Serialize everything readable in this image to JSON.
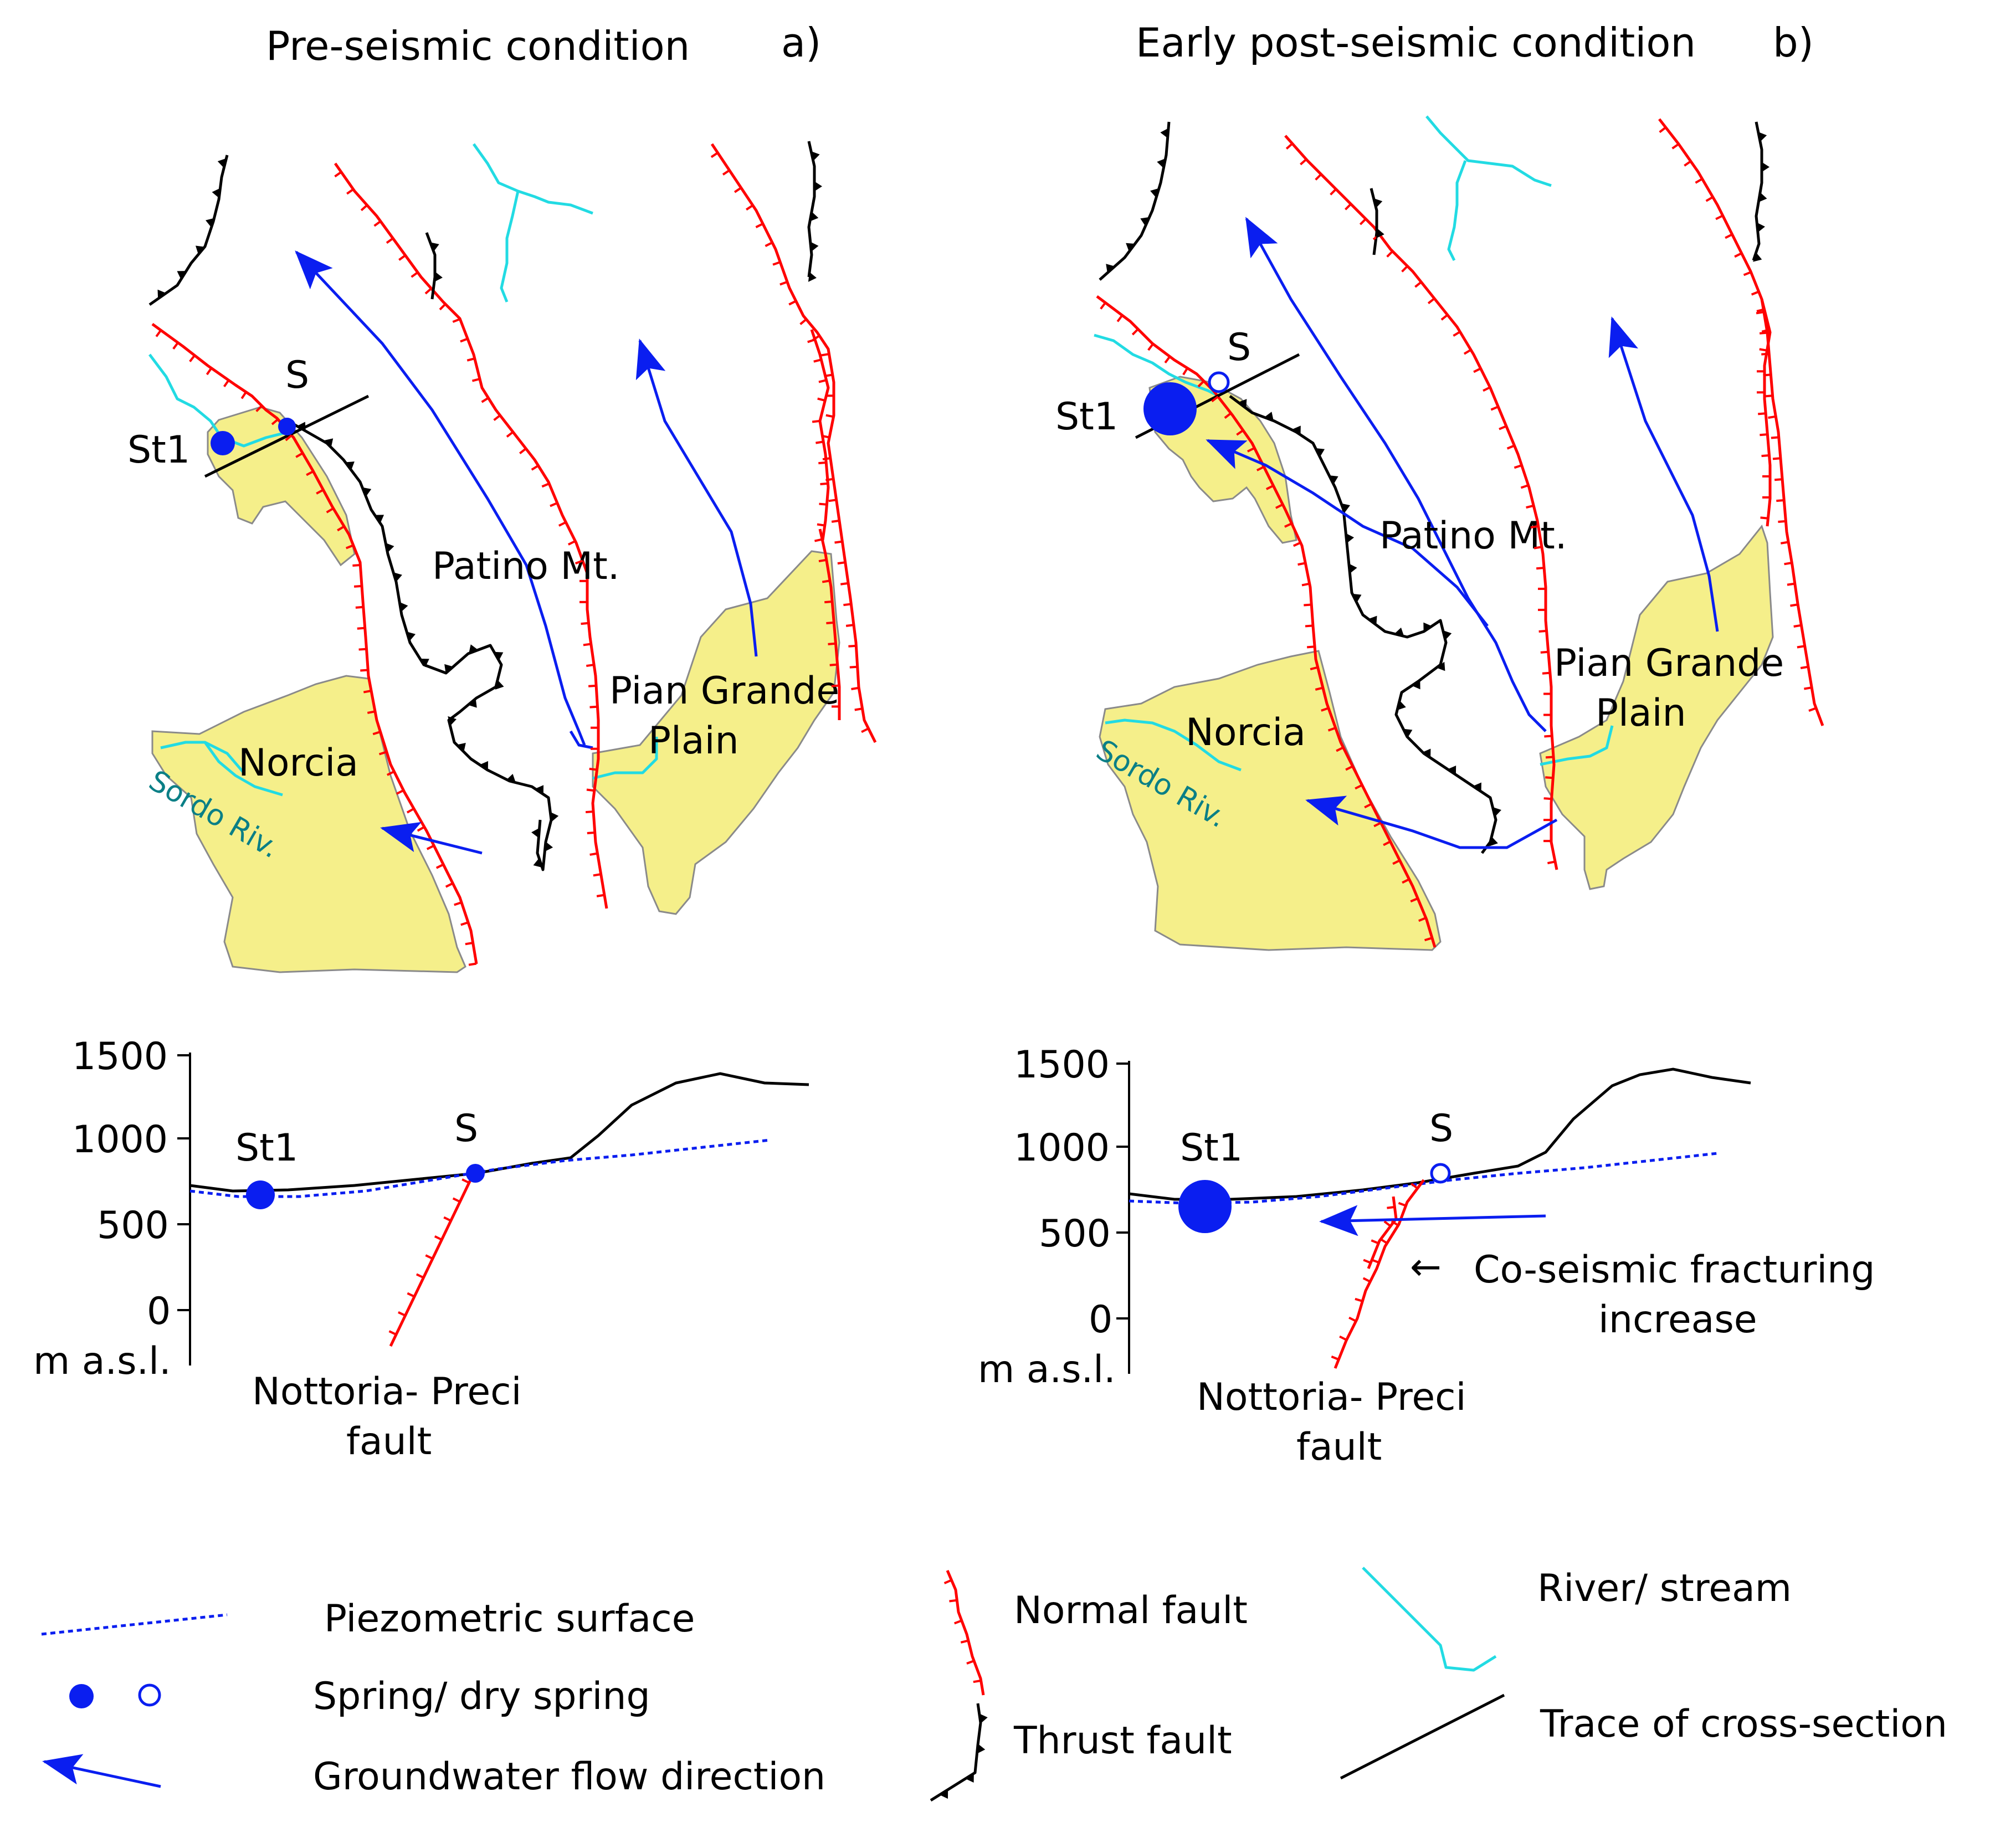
{
  "panel_a": {
    "title": "Pre-seismic condition",
    "tag": "a)",
    "labels": {
      "spring_s": "S",
      "spring_st1": "St1",
      "mountain": "Patino Mt.",
      "plain_line1": "Pian Grande",
      "plain_line2": "Plain",
      "town": "Norcia",
      "river": "Sordo Riv."
    },
    "section": {
      "y_ticks": [
        "1500",
        "1000",
        "500",
        "0"
      ],
      "unit": "m a.s.l.",
      "label_st1": "St1",
      "label_s": "S",
      "fault_line1": "Nottoria- Preci",
      "fault_line2": "fault"
    }
  },
  "panel_b": {
    "title": "Early post-seismic condition",
    "tag": "b)",
    "labels": {
      "spring_s": "S",
      "spring_st1": "St1",
      "mountain": "Patino Mt.",
      "plain_line1": "Pian Grande",
      "plain_line2": "Plain",
      "town": "Norcia",
      "river": "Sordo Riv."
    },
    "section": {
      "y_ticks": [
        "1500",
        "1000",
        "500",
        "0"
      ],
      "unit": "m a.s.l.",
      "label_st1": "St1",
      "label_s": "S",
      "fault_line1": "Nottoria- Preci",
      "fault_line2": "fault",
      "annotation_line1": "Co-seismic fracturing",
      "annotation_line2": "increase",
      "annotation_arrow": "←"
    }
  },
  "legend": {
    "piezometric": "Piezometric surface",
    "spring": "Spring/ dry spring",
    "gw_flow": "Groundwater flow direction",
    "normal_fault": "Normal fault",
    "thrust_fault": "Thrust fault",
    "river": "River/ stream",
    "trace": "Trace of cross-section"
  },
  "colors": {
    "plain_fill": "#f5ef8a",
    "normal_fault": "#ff0000",
    "thrust_fault": "#000000",
    "river": "#22dbe3",
    "groundwater": "#0a1ef0"
  }
}
